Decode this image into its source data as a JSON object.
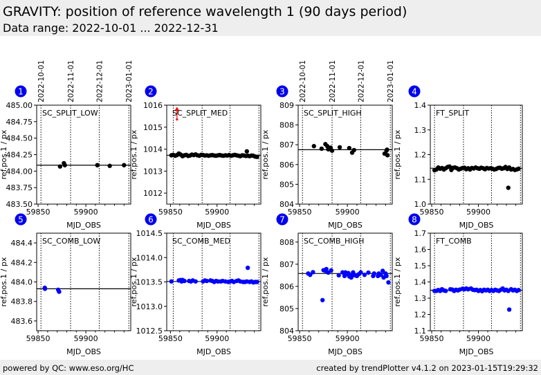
{
  "header": {
    "title": "GRAVITY: position of reference wavelength 1 (90 days period)",
    "subtitle": "Data range: 2022-10-01 ... 2022-12-31"
  },
  "footer": {
    "left": "powered by QC: www.eso.org/HC",
    "right": "created by trendPlotter v4.1.2 on 2023-01-15T19:29:32"
  },
  "colors": {
    "badge": "#0000ee",
    "black_series": "#000000",
    "blue_series": "#0000ff",
    "outlier": "#ff0000"
  },
  "chart_data": [
    {
      "type": "scatter",
      "panel": 1,
      "label": "SC_SPLIT_LOW",
      "color": "black",
      "xlabel": "MJD_OBS",
      "ylabel": "ref.pos.1 / px",
      "xlim": [
        59848.5,
        59947
      ],
      "ylim": [
        483.5,
        485.0
      ],
      "xticks": [
        59850,
        59900
      ],
      "yticks": [
        483.5,
        483.75,
        484.0,
        484.25,
        484.5,
        484.75,
        485.0
      ],
      "ytick_labels": [
        "483.50",
        "483.75",
        "484.00",
        "484.25",
        "484.50",
        "484.75",
        "485.00"
      ],
      "date_lines": [
        59853,
        59884,
        59914,
        59945
      ],
      "date_labels": [
        "2022-10-01",
        "2022-11-01",
        "2022-12-01",
        "2023-01-01"
      ],
      "reference": 484.09,
      "x": [
        59873,
        59877,
        59878,
        59912,
        59925,
        59940
      ],
      "y": [
        484.07,
        484.12,
        484.09,
        484.09,
        484.08,
        484.09
      ]
    },
    {
      "type": "scatter",
      "panel": 2,
      "label": "SC_SPLIT_MED",
      "color": "black",
      "xlabel": "MJD_OBS",
      "ylabel": "ref.pos.1 / px",
      "xlim": [
        59846,
        59947
      ],
      "ylim": [
        1011.5,
        1016.0
      ],
      "xticks": [
        59850,
        59900
      ],
      "yticks": [
        1012,
        1013,
        1014,
        1015,
        1016
      ],
      "ytick_labels": [
        "1012",
        "1013",
        "1014",
        "1015",
        "1016"
      ],
      "date_lines": [
        59853,
        59884,
        59914,
        59945
      ],
      "reference": 1013.72,
      "x": [
        59851,
        59853,
        59855,
        59857,
        59859,
        59861,
        59863,
        59865,
        59867,
        59869,
        59871,
        59873,
        59875,
        59877,
        59879,
        59881,
        59883,
        59885,
        59887,
        59889,
        59891,
        59893,
        59895,
        59897,
        59899,
        59901,
        59903,
        59905,
        59907,
        59909,
        59911,
        59913,
        59915,
        59917,
        59919,
        59921,
        59923,
        59925,
        59927,
        59929,
        59931,
        59932,
        59933,
        59935,
        59937,
        59939,
        59941,
        59943
      ],
      "y": [
        1013.72,
        1013.74,
        1013.7,
        1013.73,
        1013.8,
        1013.75,
        1013.68,
        1013.72,
        1013.74,
        1013.69,
        1013.71,
        1013.75,
        1013.73,
        1013.76,
        1013.72,
        1013.7,
        1013.74,
        1013.73,
        1013.71,
        1013.72,
        1013.7,
        1013.72,
        1013.73,
        1013.71,
        1013.7,
        1013.72,
        1013.73,
        1013.71,
        1013.7,
        1013.72,
        1013.71,
        1013.73,
        1013.7,
        1013.72,
        1013.74,
        1013.72,
        1013.7,
        1013.68,
        1013.72,
        1013.71,
        1013.69,
        1013.9,
        1013.7,
        1013.68,
        1013.71,
        1013.7,
        1013.66,
        1013.65
      ],
      "outliers": {
        "x": [
          59857
        ],
        "y": [
          1015.8
        ],
        "arrow_to": 1015.35,
        "color": "red"
      }
    },
    {
      "type": "scatter",
      "panel": 3,
      "label": "SC_SPLIT_HIGH",
      "color": "black",
      "xlabel": "MJD_OBS",
      "ylabel": "ref.pos.1 / px",
      "xlim": [
        59848.5,
        59947
      ],
      "ylim": [
        804,
        809
      ],
      "xticks": [
        59850,
        59900
      ],
      "yticks": [
        804,
        805,
        806,
        807,
        808,
        809
      ],
      "ytick_labels": [
        "804",
        "805",
        "806",
        "807",
        "808",
        "809"
      ],
      "date_lines": [
        59853,
        59884,
        59914,
        59945
      ],
      "date_labels": [
        "2022-10-01",
        "2022-11-01",
        "2022-12-01",
        "2023-01-01"
      ],
      "reference": 806.75,
      "x": [
        59865,
        59873,
        59877,
        59879,
        59880,
        59882,
        59882.5,
        59884,
        59892,
        59902,
        59905,
        59907,
        59939,
        59941,
        59941.5,
        59942
      ],
      "y": [
        806.93,
        806.8,
        807.03,
        806.93,
        806.77,
        806.78,
        806.85,
        806.7,
        806.87,
        806.83,
        806.6,
        806.73,
        806.55,
        806.7,
        806.75,
        806.47
      ]
    },
    {
      "type": "scatter",
      "panel": 4,
      "label": "FT_SPLIT",
      "color": "black",
      "xlabel": "MJD_OBS",
      "ylabel": "ref.pos.1 / px",
      "xlim": [
        59848.5,
        59947
      ],
      "ylim": [
        1.0,
        1.4
      ],
      "xticks": [
        59850,
        59900
      ],
      "yticks": [
        1.0,
        1.1,
        1.2,
        1.3,
        1.4
      ],
      "ytick_labels": [
        "1.0",
        "1.1",
        "1.2",
        "1.3",
        "1.4"
      ],
      "date_lines": [
        59853,
        59884,
        59914,
        59945
      ],
      "date_labels": [],
      "reference": 1.145,
      "x": [
        59853,
        59855,
        59857,
        59859,
        59861,
        59863,
        59865,
        59867,
        59869,
        59871,
        59873,
        59875,
        59877,
        59879,
        59881,
        59883,
        59885,
        59887,
        59889,
        59891,
        59893,
        59895,
        59897,
        59899,
        59901,
        59903,
        59905,
        59907,
        59909,
        59911,
        59913,
        59915,
        59917,
        59919,
        59921,
        59923,
        59925,
        59927,
        59929,
        59931,
        59932,
        59933,
        59935,
        59937,
        59939,
        59941,
        59943
      ],
      "y": [
        1.137,
        1.14,
        1.148,
        1.143,
        1.146,
        1.14,
        1.145,
        1.15,
        1.152,
        1.138,
        1.147,
        1.148,
        1.145,
        1.14,
        1.143,
        1.146,
        1.147,
        1.141,
        1.145,
        1.14,
        1.146,
        1.144,
        1.148,
        1.145,
        1.143,
        1.147,
        1.145,
        1.141,
        1.146,
        1.144,
        1.145,
        1.143,
        1.14,
        1.142,
        1.146,
        1.147,
        1.143,
        1.145,
        1.15,
        1.142,
        1.066,
        1.148,
        1.14,
        1.142,
        1.138,
        1.14,
        1.143
      ]
    },
    {
      "type": "scatter",
      "panel": 5,
      "label": "SC_COMB_LOW",
      "color": "blue",
      "xlabel": "MJD_OBS",
      "ylabel": "ref.pos.1 / px",
      "xlim": [
        59848.5,
        59947
      ],
      "ylim": [
        483.5,
        484.5
      ],
      "xticks": [
        59850,
        59900
      ],
      "yticks": [
        483.6,
        483.8,
        484.0,
        484.2,
        484.4
      ],
      "ytick_labels": [
        "483.6",
        "483.8",
        "484.0",
        "484.2",
        "484.4"
      ],
      "date_lines": [
        59853,
        59884,
        59914,
        59945
      ],
      "reference": 483.93,
      "x": [
        59857,
        59857.2,
        59871,
        59872
      ],
      "y": [
        483.94,
        483.93,
        483.92,
        483.9
      ]
    },
    {
      "type": "scatter",
      "panel": 6,
      "label": "SC_COMB_MED",
      "color": "blue",
      "xlabel": "MJD_OBS",
      "ylabel": "ref.pos.1 / px",
      "xlim": [
        59846,
        59947
      ],
      "ylim": [
        1012.5,
        1014.5
      ],
      "xticks": [
        59850,
        59900
      ],
      "yticks": [
        1012.5,
        1013.0,
        1013.5,
        1014.0,
        1014.5
      ],
      "ytick_labels": [
        "1012.5",
        "1013.0",
        "1013.5",
        "1014.0",
        "1014.5"
      ],
      "date_lines": [
        59853,
        59884,
        59914,
        59945
      ],
      "reference": 1013.51,
      "x": [
        59851,
        59859,
        59861,
        59862,
        59863,
        59865,
        59870,
        59872,
        59874,
        59877,
        59885,
        59887,
        59889,
        59893,
        59895,
        59897,
        59899,
        59901,
        59904,
        59906,
        59909,
        59912,
        59914,
        59916,
        59918,
        59921,
        59923,
        59925,
        59928,
        59930,
        59932,
        59933,
        59935,
        59937,
        59939,
        59941,
        59943
      ],
      "y": [
        1013.51,
        1013.53,
        1013.54,
        1013.51,
        1013.54,
        1013.52,
        1013.52,
        1013.51,
        1013.53,
        1013.51,
        1013.51,
        1013.53,
        1013.52,
        1013.53,
        1013.52,
        1013.5,
        1013.52,
        1013.51,
        1013.51,
        1013.52,
        1013.51,
        1013.5,
        1013.51,
        1013.52,
        1013.5,
        1013.52,
        1013.53,
        1013.51,
        1013.5,
        1013.5,
        1013.51,
        1013.79,
        1013.5,
        1013.51,
        1013.49,
        1013.5,
        1013.5
      ]
    },
    {
      "type": "scatter",
      "panel": 7,
      "label": "SC_COMB_HIGH",
      "color": "blue",
      "xlabel": "MJD_OBS",
      "ylabel": "ref.pos.1 / px",
      "xlim": [
        59848.5,
        59947
      ],
      "ylim": [
        804,
        808.4
      ],
      "xticks": [
        59850,
        59900
      ],
      "yticks": [
        804,
        805,
        806,
        807,
        808
      ],
      "ytick_labels": [
        "804",
        "805",
        "806",
        "807",
        "808"
      ],
      "date_lines": [
        59853,
        59884,
        59914,
        59945
      ],
      "reference": 806.58,
      "x": [
        59859,
        59861,
        59864,
        59874,
        59875,
        59877,
        59878,
        59880,
        59883,
        59891,
        59895,
        59897,
        59898,
        59900,
        59901,
        59902,
        59904,
        59905,
        59906,
        59908,
        59910,
        59912,
        59914,
        59918,
        59922,
        59927,
        59928,
        59932,
        59933,
        59935,
        59937,
        59938,
        59940,
        59941,
        59943
      ],
      "y": [
        806.58,
        806.52,
        806.64,
        805.38,
        806.73,
        806.7,
        806.78,
        806.62,
        806.72,
        806.5,
        806.63,
        806.47,
        806.63,
        806.55,
        806.6,
        806.45,
        806.4,
        806.5,
        806.63,
        806.5,
        806.47,
        806.55,
        806.63,
        806.52,
        806.62,
        806.47,
        806.58,
        806.47,
        806.58,
        806.52,
        806.7,
        806.4,
        806.58,
        806.47,
        806.18
      ]
    },
    {
      "type": "scatter",
      "panel": 8,
      "label": "FT_COMB",
      "color": "blue",
      "xlabel": "MJD_OBS",
      "ylabel": "ref.pos.1 / px",
      "xlim": [
        59848.5,
        59947
      ],
      "ylim": [
        1.1,
        1.7
      ],
      "xticks": [
        59850,
        59900
      ],
      "yticks": [
        1.1,
        1.2,
        1.3,
        1.4,
        1.5,
        1.6,
        1.7
      ],
      "ytick_labels": [
        "1.1",
        "1.2",
        "1.3",
        "1.4",
        "1.5",
        "1.6",
        "1.7"
      ],
      "date_lines": [
        59853,
        59884,
        59914,
        59945
      ],
      "reference": 1.349,
      "x": [
        59853,
        59855,
        59857,
        59859,
        59861,
        59863,
        59865,
        59870,
        59872,
        59874,
        59876,
        59878,
        59880,
        59883,
        59885,
        59887,
        59889,
        59892,
        59894,
        59896,
        59898,
        59900,
        59902,
        59904,
        59906,
        59908,
        59910,
        59912,
        59914,
        59916,
        59918,
        59920,
        59922,
        59924,
        59926,
        59928,
        59930,
        59932,
        59933,
        59935,
        59937,
        59939,
        59941,
        59943
      ],
      "y": [
        1.345,
        1.345,
        1.35,
        1.345,
        1.355,
        1.348,
        1.345,
        1.355,
        1.353,
        1.345,
        1.352,
        1.348,
        1.353,
        1.358,
        1.355,
        1.36,
        1.355,
        1.36,
        1.352,
        1.35,
        1.352,
        1.345,
        1.35,
        1.343,
        1.352,
        1.348,
        1.352,
        1.345,
        1.35,
        1.345,
        1.352,
        1.348,
        1.345,
        1.352,
        1.36,
        1.348,
        1.352,
        1.345,
        1.23,
        1.355,
        1.348,
        1.352,
        1.345,
        1.35
      ]
    }
  ]
}
